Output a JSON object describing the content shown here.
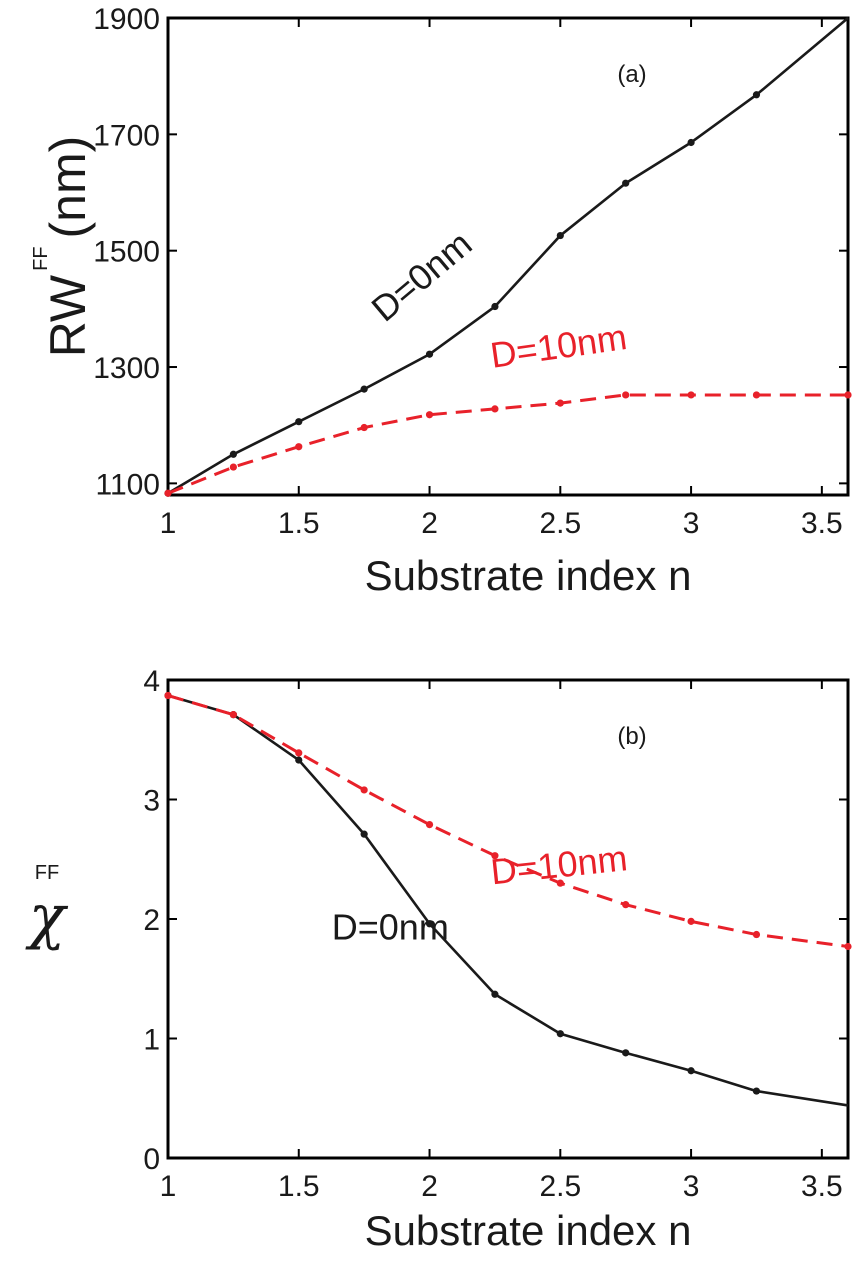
{
  "colors": {
    "black_series": "#1a1a1a",
    "red_series": "#e8212a",
    "axis": "#000000"
  },
  "chart_data": [
    {
      "type": "line",
      "panel_tag": "(a)",
      "xlabel": "Substrate index n",
      "ylabel": {
        "main": "RW",
        "sup": "FF",
        "unit": "(nm)"
      },
      "xlim": [
        1,
        3.6
      ],
      "ylim": [
        1080,
        1900
      ],
      "xticks": [
        1,
        1.5,
        2,
        2.5,
        3,
        3.5
      ],
      "xtick_labels": [
        "1",
        "1.5",
        "2",
        "2.5",
        "3",
        "3.5"
      ],
      "yticks": [
        1100,
        1300,
        1500,
        1700,
        1900
      ],
      "ytick_labels": [
        "1100",
        "1300",
        "1500",
        "1700",
        "1900"
      ],
      "series": [
        {
          "name": "D=0nm",
          "color": "#1a1a1a",
          "dashed": false,
          "x": [
            1,
            1.25,
            1.5,
            1.75,
            2,
            2.25,
            2.5,
            2.75,
            3,
            3.25,
            3.6
          ],
          "y": [
            1083,
            1150,
            1206,
            1262,
            1322,
            1404,
            1526,
            1616,
            1686,
            1768,
            1900
          ]
        },
        {
          "name": "D=10nm",
          "color": "#e8212a",
          "dashed": true,
          "x": [
            1,
            1.25,
            1.5,
            1.75,
            2,
            2.25,
            2.5,
            2.75,
            3,
            3.25,
            3.6
          ],
          "y": [
            1083,
            1128,
            1163,
            1196,
            1218,
            1228,
            1238,
            1252,
            1252,
            1252,
            1252
          ]
        }
      ],
      "annotations": [
        {
          "text": "D=0nm",
          "series": 0,
          "at_x": 2.0,
          "at_y": 1440
        },
        {
          "text": "D=10nm",
          "series": 1,
          "at_x": 2.5,
          "at_y": 1315
        }
      ]
    },
    {
      "type": "line",
      "panel_tag": "(b)",
      "xlabel": "Substrate index n",
      "ylabel": {
        "main": "χ",
        "sup": "FF"
      },
      "xlim": [
        1,
        3.6
      ],
      "ylim": [
        0,
        4
      ],
      "xticks": [
        1,
        1.5,
        2,
        2.5,
        3,
        3.5
      ],
      "xtick_labels": [
        "1",
        "1.5",
        "2",
        "2.5",
        "3",
        "3.5"
      ],
      "yticks": [
        0,
        1,
        2,
        3,
        4
      ],
      "ytick_labels": [
        "0",
        "1",
        "2",
        "3",
        "4"
      ],
      "series": [
        {
          "name": "D=0nm",
          "color": "#1a1a1a",
          "dashed": false,
          "x": [
            1,
            1.25,
            1.5,
            1.75,
            2,
            2.25,
            2.5,
            2.75,
            3,
            3.25,
            3.6
          ],
          "y": [
            3.87,
            3.71,
            3.33,
            2.71,
            1.96,
            1.37,
            1.04,
            0.88,
            0.73,
            0.56,
            0.44
          ]
        },
        {
          "name": "D=10nm",
          "color": "#e8212a",
          "dashed": true,
          "x": [
            1,
            1.25,
            1.5,
            1.75,
            2,
            2.25,
            2.5,
            2.75,
            3,
            3.25,
            3.6
          ],
          "y": [
            3.87,
            3.71,
            3.39,
            3.08,
            2.79,
            2.53,
            2.3,
            2.12,
            1.98,
            1.87,
            1.77
          ]
        }
      ],
      "annotations": [
        {
          "text": "D=0nm",
          "series": 0,
          "at_x": 1.85,
          "at_y": 1.83
        },
        {
          "text": "D=10nm",
          "series": 1,
          "at_x": 2.5,
          "at_y": 2.35
        }
      ]
    }
  ]
}
